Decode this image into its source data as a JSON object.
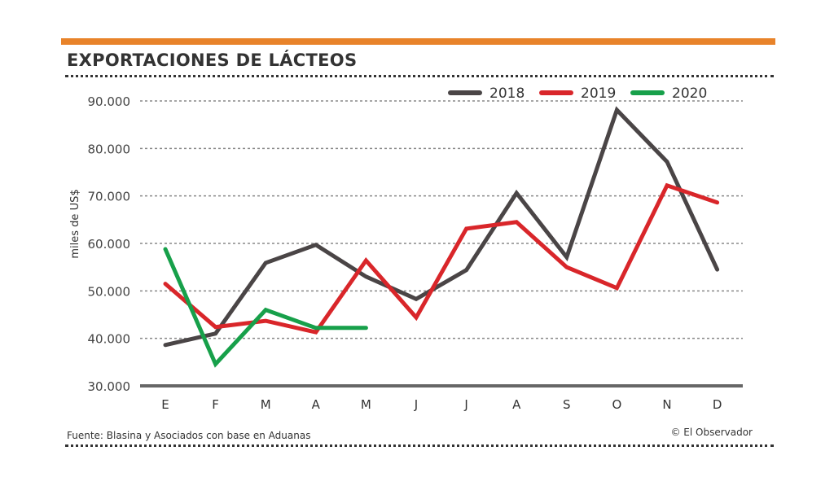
{
  "header": {
    "title": "EXPORTACIONES DE LÁCTEOS",
    "accent_color": "#e8832a"
  },
  "footer": {
    "source": "Fuente: Blasina y Asociados con base en Aduanas",
    "credit": "© El Observador"
  },
  "chart_data": {
    "type": "line",
    "title": "EXPORTACIONES DE LÁCTEOS",
    "xlabel": "",
    "ylabel": "miles de US$",
    "categories": [
      "E",
      "F",
      "M",
      "A",
      "M",
      "J",
      "J",
      "A",
      "S",
      "O",
      "N",
      "D"
    ],
    "ylim": [
      30000,
      90000
    ],
    "yticks": [
      30000,
      40000,
      50000,
      60000,
      70000,
      80000,
      90000
    ],
    "ytick_labels": [
      "30.000",
      "40.000",
      "50.000",
      "60.000",
      "70.000",
      "80.000",
      "90.000"
    ],
    "grid": true,
    "legend_position": "top-right",
    "series": [
      {
        "name": "2018",
        "color": "#4a4546",
        "values": [
          38600,
          41000,
          55900,
          59700,
          53000,
          48300,
          54400,
          70600,
          57100,
          88100,
          77200,
          54500
        ]
      },
      {
        "name": "2019",
        "color": "#d9262a",
        "values": [
          51500,
          42400,
          43700,
          41300,
          56400,
          44400,
          63100,
          64500,
          55000,
          50600,
          72200,
          68600
        ]
      },
      {
        "name": "2020",
        "color": "#17a04a",
        "values": [
          58800,
          34600,
          46000,
          42200,
          42200,
          null,
          null,
          null,
          null,
          null,
          null,
          null
        ]
      }
    ]
  }
}
